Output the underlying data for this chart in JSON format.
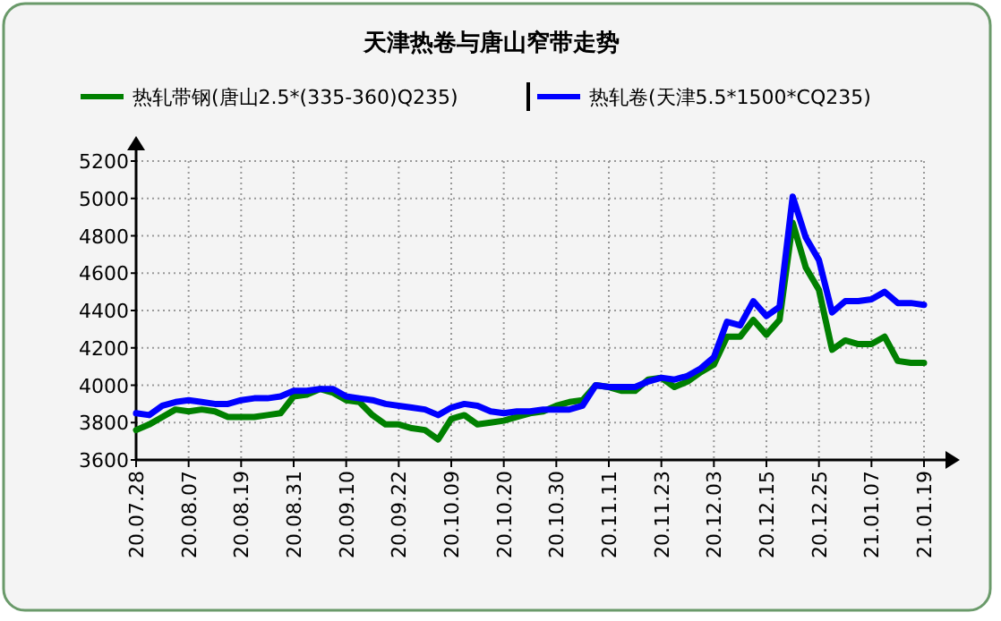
{
  "chart_data": {
    "type": "line",
    "title": "天津热卷与唐山窄带走势",
    "categories": [
      "20.07.28",
      null,
      null,
      null,
      "20.08.07",
      null,
      null,
      null,
      "20.08.19",
      null,
      null,
      null,
      "20.08.31",
      null,
      null,
      null,
      "20.09.10",
      null,
      null,
      null,
      "20.09.22",
      null,
      null,
      null,
      "20.10.09",
      null,
      null,
      null,
      "20.10.20",
      null,
      null,
      null,
      "20.10.30",
      null,
      null,
      null,
      "20.11.11",
      null,
      null,
      null,
      "20.11.23",
      null,
      null,
      null,
      "20.12.03",
      null,
      null,
      null,
      "20.12.15",
      null,
      null,
      null,
      "20.12.25",
      null,
      null,
      null,
      "21.01.07",
      null,
      null,
      null,
      "21.01.19"
    ],
    "series": [
      {
        "name": "热轧带钢(唐山2.5*(335-360)Q235)",
        "color": "#008000",
        "values": [
          3760,
          3790,
          3830,
          3870,
          3860,
          3870,
          3860,
          3830,
          3830,
          3830,
          3840,
          3850,
          3940,
          3950,
          3980,
          3960,
          3920,
          3910,
          3840,
          3790,
          3790,
          3770,
          3760,
          3710,
          3820,
          3840,
          3790,
          3800,
          3810,
          3830,
          3850,
          3860,
          3890,
          3910,
          3920,
          4000,
          3990,
          3970,
          3970,
          4030,
          4040,
          3990,
          4020,
          4070,
          4110,
          4260,
          4260,
          4350,
          4270,
          4350,
          4870,
          4630,
          4510,
          4190,
          4240,
          4220,
          4220,
          4260,
          4130,
          4120,
          4120
        ]
      },
      {
        "name": "热轧卷(天津5.5*1500*CQ235)",
        "color": "#0000ff",
        "values": [
          3850,
          3840,
          3890,
          3910,
          3920,
          3910,
          3900,
          3900,
          3920,
          3930,
          3930,
          3940,
          3970,
          3970,
          3980,
          3980,
          3940,
          3930,
          3920,
          3900,
          3890,
          3880,
          3870,
          3840,
          3880,
          3900,
          3890,
          3860,
          3850,
          3860,
          3860,
          3870,
          3870,
          3870,
          3890,
          4000,
          3990,
          3990,
          3990,
          4020,
          4040,
          4030,
          4050,
          4090,
          4150,
          4340,
          4320,
          4450,
          4370,
          4420,
          5010,
          4790,
          4670,
          4390,
          4450,
          4450,
          4460,
          4500,
          4440,
          4440,
          4430
        ]
      }
    ],
    "ylim": [
      3600,
      5200
    ],
    "yticks": [
      3600,
      3800,
      4000,
      4200,
      4400,
      4600,
      4800,
      5000,
      5200
    ],
    "grid": true,
    "legend": "top",
    "line_style": "solid",
    "marker": "none"
  }
}
